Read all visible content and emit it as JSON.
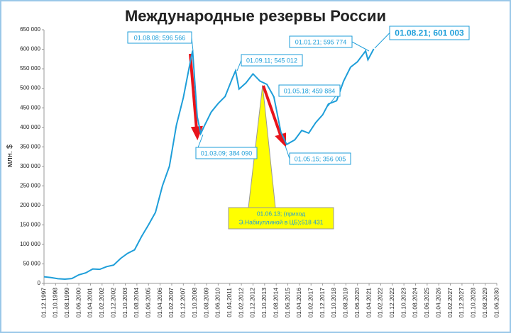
{
  "chart_data": {
    "type": "line",
    "title": "Международные резервы России",
    "ylabel": "млн. $",
    "x": [
      "01.12.1997",
      "01.06.1998",
      "01.12.1998",
      "01.06.1999",
      "01.12.1999",
      "01.06.2000",
      "01.12.2000",
      "01.06.2001",
      "01.12.2001",
      "01.06.2002",
      "01.12.2002",
      "01.06.2003",
      "01.12.2003",
      "01.06.2004",
      "01.12.2004",
      "01.06.2005",
      "01.12.2005",
      "01.06.2006",
      "01.12.2006",
      "01.06.2007",
      "01.12.2007",
      "01.06.2008",
      "01.08.2008",
      "01.12.2008",
      "01.03.2009",
      "01.06.2009",
      "01.12.2009",
      "01.06.2010",
      "01.12.2010",
      "01.06.2011",
      "01.09.2011",
      "01.12.2011",
      "01.06.2012",
      "01.12.2012",
      "01.06.2013",
      "01.12.2013",
      "01.06.2014",
      "01.12.2014",
      "01.05.2015",
      "01.12.2015",
      "01.06.2016",
      "01.12.2016",
      "01.06.2017",
      "01.12.2017",
      "01.05.2018",
      "01.12.2018",
      "01.06.2019",
      "01.12.2019",
      "01.06.2020",
      "01.01.2021",
      "01.03.2021",
      "01.08.2021"
    ],
    "series": [
      {
        "color": "#1e9ed9",
        "values": [
          17000,
          15000,
          12000,
          11000,
          12500,
          22000,
          27000,
          37000,
          36000,
          43000,
          47000,
          64000,
          77000,
          86000,
          120000,
          150000,
          182000,
          250000,
          300000,
          405000,
          476000,
          568000,
          596566,
          427000,
          384090,
          403000,
          439000,
          461000,
          479000,
          524000,
          545012,
          498000,
          514000,
          537000,
          518431,
          510000,
          478000,
          388000,
          356005,
          368000,
          392000,
          385000,
          412000,
          432000,
          459884,
          468000,
          518000,
          554000,
          568000,
          595774,
          573000,
          601003
        ]
      }
    ],
    "xlim": [
      "01.12.1997",
      "01.06.2030"
    ],
    "xticks": [
      "01.12.1997",
      "01.10.1998",
      "01.08.1999",
      "01.06.2000",
      "01.04.2001",
      "01.02.2002",
      "01.12.2002",
      "01.10.2003",
      "01.08.2004",
      "01.06.2005",
      "01.04.2006",
      "01.02.2007",
      "01.12.2007",
      "01.10.2008",
      "01.08.2009",
      "01.06.2010",
      "01.04.2011",
      "01.02.2012",
      "01.12.2012",
      "01.10.2013",
      "01.08.2014",
      "01.06.2015",
      "01.04.2016",
      "01.02.2017",
      "01.12.2017",
      "01.10.2018",
      "01.08.2019",
      "01.06.2020",
      "01.04.2021",
      "01.02.2022",
      "01.12.2022",
      "01.10.2023",
      "01.08.2024",
      "01.06.2025",
      "01.04.2026",
      "01.02.2027",
      "01.12.2027",
      "01.10.2028",
      "01.08.2029",
      "01.06.2030"
    ],
    "ylim": [
      0,
      650000
    ],
    "yticks": [
      0,
      {
        "value": 50000,
        "label": "50 000"
      },
      {
        "value": 100000,
        "label": "100 000"
      },
      {
        "value": 150000,
        "label": "150 000"
      },
      {
        "value": 200000,
        "label": "200 000"
      },
      {
        "value": 250000,
        "label": "250 000"
      },
      {
        "value": 300000,
        "label": "300 000"
      },
      {
        "value": 350000,
        "label": "350 000"
      },
      {
        "value": 400000,
        "label": "400 000"
      },
      {
        "value": 450000,
        "label": "450 000"
      },
      {
        "value": 500000,
        "label": "500 000"
      },
      {
        "value": 550000,
        "label": "550 000"
      },
      {
        "value": 600000,
        "label": "600 000"
      },
      {
        "value": 650000,
        "label": "650 000"
      }
    ],
    "annotations": [
      "01.08.08; 596 566",
      "01.03.09; 384 090",
      "01.09.11; 545 012",
      "01.05.18; 459 884",
      "01.05.15; 356 005",
      "01.01.21; 595 774",
      "01.08.21; 601 003",
      [
        "01.06.13;  (приход",
        "Э.Набиуллиной в ЦБ);518 431"
      ]
    ]
  }
}
